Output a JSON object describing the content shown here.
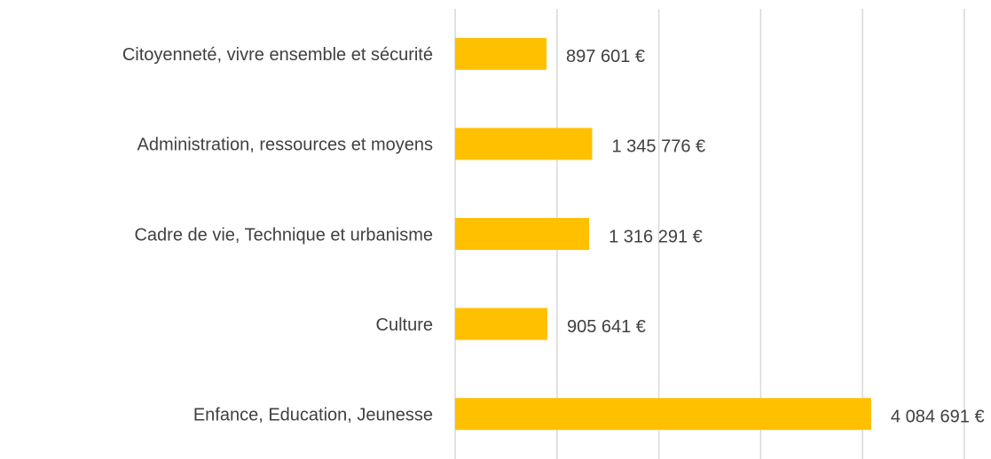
{
  "chart_data": {
    "type": "barh",
    "categories": [
      "Citoyenneté, vivre ensemble et sécurité",
      "Administration, ressources et moyens",
      "Cadre de vie, Technique et urbanisme",
      "Culture",
      "Enfance, Education, Jeunesse"
    ],
    "values": [
      897601,
      1345776,
      1316291,
      905641,
      4084691
    ],
    "value_labels": [
      "897 601 €",
      "1 345 776 €",
      "1 316 291 €",
      "905 641 €",
      "4 084 691 €"
    ],
    "color": "#ffc000",
    "xlim": [
      0,
      5000000
    ],
    "xticks": [
      0,
      1000000,
      2000000,
      3000000,
      4000000,
      5000000
    ],
    "grid": true
  }
}
